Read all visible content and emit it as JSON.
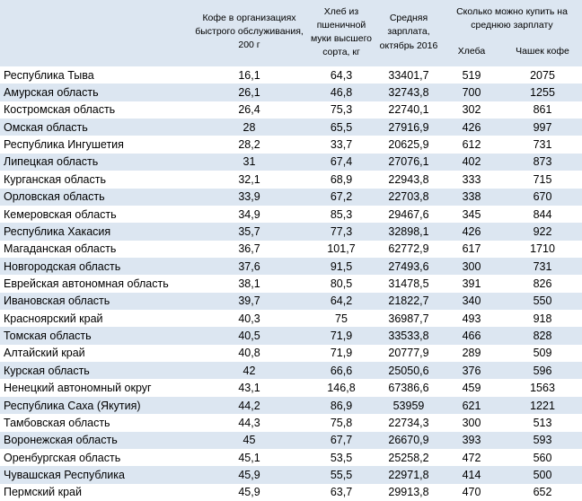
{
  "header": {
    "coffee": "Кофе в организациях быстрого обслуживания, 200 г",
    "bread": "Хлеб из пшеничной муки высшего сорта, кг",
    "salary": "Средняя зарплата, октябрь 2016",
    "group": "Сколько можно купить на среднюю зарплату",
    "bread_count": "Хлеба",
    "coffee_count": "Чашек кофе"
  },
  "table": {
    "rows": [
      [
        "Республика Тыва",
        "16,1",
        "64,3",
        "33401,7",
        "519",
        "2075"
      ],
      [
        "Амурская область",
        "26,1",
        "46,8",
        "32743,8",
        "700",
        "1255"
      ],
      [
        "Костромская область",
        "26,4",
        "75,3",
        "22740,1",
        "302",
        "861"
      ],
      [
        "Омская область",
        "28",
        "65,5",
        "27916,9",
        "426",
        "997"
      ],
      [
        "Республика Ингушетия",
        "28,2",
        "33,7",
        "20625,9",
        "612",
        "731"
      ],
      [
        "Липецкая область",
        "31",
        "67,4",
        "27076,1",
        "402",
        "873"
      ],
      [
        "Курганская область",
        "32,1",
        "68,9",
        "22943,8",
        "333",
        "715"
      ],
      [
        "Орловская область",
        "33,9",
        "67,2",
        "22703,8",
        "338",
        "670"
      ],
      [
        "Кемеровская область",
        "34,9",
        "85,3",
        "29467,6",
        "345",
        "844"
      ],
      [
        "Республика Хакасия",
        "35,7",
        "77,3",
        "32898,1",
        "426",
        "922"
      ],
      [
        "Магаданская область",
        "36,7",
        "101,7",
        "62772,9",
        "617",
        "1710"
      ],
      [
        "Новгородская область",
        "37,6",
        "91,5",
        "27493,6",
        "300",
        "731"
      ],
      [
        "Еврейская автономная область",
        "38,1",
        "80,5",
        "31478,5",
        "391",
        "826"
      ],
      [
        "Ивановская область",
        "39,7",
        "64,2",
        "21822,7",
        "340",
        "550"
      ],
      [
        "Красноярский край",
        "40,3",
        "75",
        "36987,7",
        "493",
        "918"
      ],
      [
        "Томская область",
        "40,5",
        "71,9",
        "33533,8",
        "466",
        "828"
      ],
      [
        "Алтайский край",
        "40,8",
        "71,9",
        "20777,9",
        "289",
        "509"
      ],
      [
        "Курская область",
        "42",
        "66,6",
        "25050,6",
        "376",
        "596"
      ],
      [
        "Ненецкий автономный округ",
        "43,1",
        "146,8",
        "67386,6",
        "459",
        "1563"
      ],
      [
        "Республика Саха (Якутия)",
        "44,2",
        "86,9",
        "53959",
        "621",
        "1221"
      ],
      [
        "Тамбовская область",
        "44,3",
        "75,8",
        "22734,3",
        "300",
        "513"
      ],
      [
        "Воронежская область",
        "45",
        "67,7",
        "26670,9",
        "393",
        "593"
      ],
      [
        "Оренбургская область",
        "45,1",
        "53,5",
        "25258,2",
        "472",
        "560"
      ],
      [
        "Чувашская Республика",
        "45,9",
        "55,5",
        "22971,8",
        "414",
        "500"
      ],
      [
        "Пермский край",
        "45,9",
        "63,7",
        "29913,8",
        "470",
        "652"
      ]
    ]
  }
}
